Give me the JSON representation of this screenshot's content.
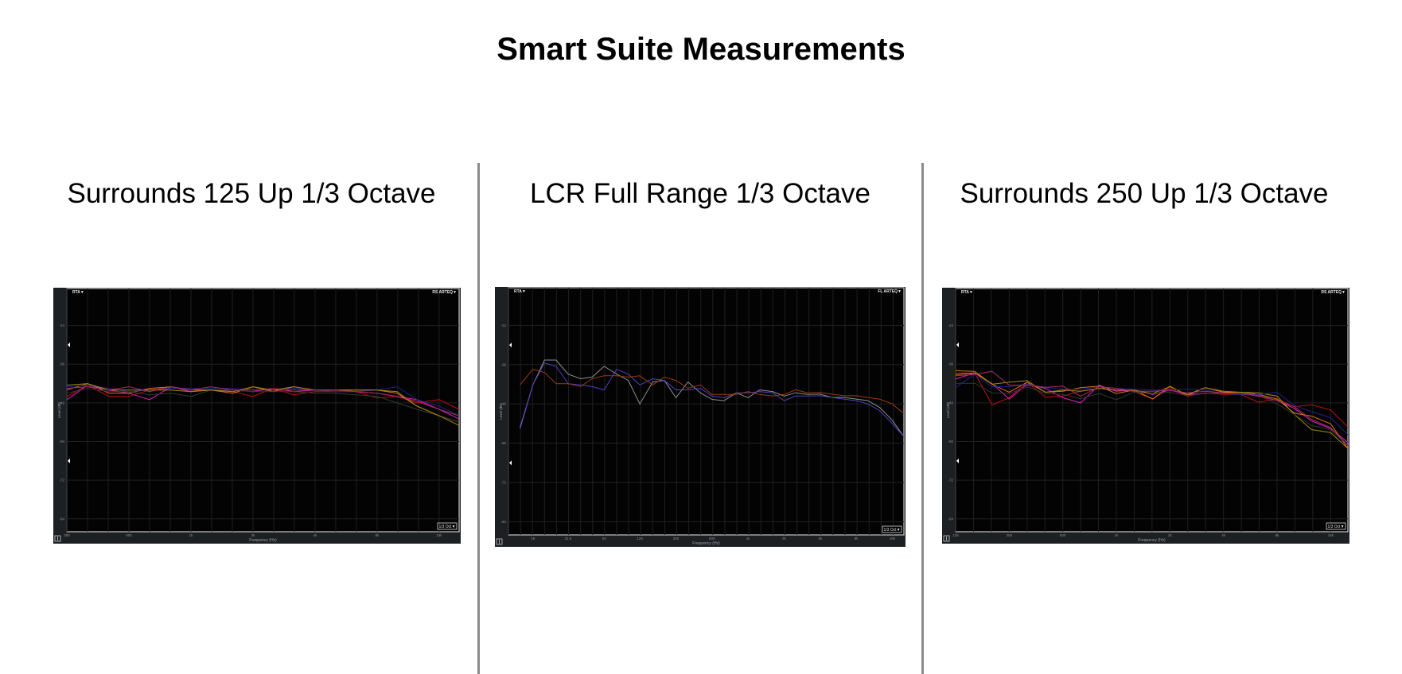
{
  "page": {
    "title": "Smart Suite Measurements"
  },
  "chart_data": [
    {
      "type": "line",
      "title": "Surrounds 125 Up 1/3 Octave",
      "xlabel": "Frequency (Hz)",
      "ylabel": "Level (dB)",
      "xscale": "log",
      "xlim": [
        250,
        20000
      ],
      "ylim": [
        -88,
        -12.5
      ],
      "yticks": [
        -24,
        -36,
        -48,
        -60,
        -72,
        -84
      ],
      "xticks": [
        {
          "v": 250,
          "label": "250"
        },
        {
          "v": 500,
          "label": "500"
        },
        {
          "v": 1000,
          "label": "1k"
        },
        {
          "v": 2000,
          "label": "2k"
        },
        {
          "v": 4000,
          "label": "4k"
        },
        {
          "v": 8000,
          "label": "8k"
        },
        {
          "v": 16000,
          "label": "16k"
        }
      ],
      "grid": true,
      "top_left_label": "RTA▼",
      "top_right_label": "RS ARTEQ▼",
      "resolution_label": "1/3 Oct▼",
      "x": [
        250,
        315,
        400,
        500,
        630,
        800,
        1000,
        1250,
        1600,
        2000,
        2500,
        3150,
        4000,
        5000,
        6300,
        8000,
        10000,
        12500,
        16000,
        20000
      ],
      "series": [
        {
          "name": "trace-1",
          "color": "#e020c0",
          "values": [
            -47,
            -42.5,
            -44,
            -45,
            -47,
            -43,
            -44.5,
            -44,
            -44,
            -44.5,
            -43.5,
            -44.5,
            -44,
            -44,
            -44.5,
            -45,
            -46,
            -47,
            -50,
            -53
          ]
        },
        {
          "name": "trace-2",
          "color": "#c01010",
          "values": [
            -46,
            -42.5,
            -46,
            -46,
            -44,
            -43,
            -44,
            -44,
            -44.5,
            -46,
            -43.5,
            -45.5,
            -44.5,
            -44.5,
            -44.5,
            -46.5,
            -46,
            -48,
            -47,
            -50
          ]
        },
        {
          "name": "trace-3",
          "color": "#e07020",
          "values": [
            -44,
            -42,
            -45,
            -45,
            -43.5,
            -43,
            -44,
            -44,
            -45,
            -43,
            -44.5,
            -43,
            -44,
            -44,
            -44,
            -44,
            -45,
            -49,
            -52,
            -54
          ]
        },
        {
          "name": "trace-4",
          "color": "#2c3a32",
          "values": [
            -45,
            -43.5,
            -44.5,
            -44.5,
            -45.5,
            -45,
            -46,
            -44,
            -44,
            -44.5,
            -44.5,
            -44.5,
            -45,
            -45,
            -45.5,
            -46,
            -48,
            -50,
            -52,
            -54
          ]
        },
        {
          "name": "trace-5",
          "color": "#22228a",
          "values": [
            -43,
            -42.5,
            -43.5,
            -44.5,
            -44,
            -43.5,
            -43.5,
            -43.5,
            -43.5,
            -44,
            -44,
            -43.5,
            -44,
            -44.5,
            -44.5,
            -44,
            -43,
            -47,
            -49,
            -52
          ]
        },
        {
          "name": "trace-6",
          "color": "#a08a10",
          "values": [
            -42.5,
            -42,
            -44,
            -44,
            -44,
            -44,
            -44.5,
            -44,
            -44.5,
            -43,
            -44,
            -43,
            -44,
            -44,
            -44,
            -44,
            -44.5,
            -49,
            -52,
            -55
          ]
        },
        {
          "name": "trace-7",
          "color": "#a03060",
          "values": [
            -43.5,
            -43,
            -44,
            -43,
            -44.5,
            -43,
            -44,
            -43,
            -44,
            -44,
            -44,
            -44,
            -44,
            -44,
            -44.5,
            -45,
            -46,
            -47.5,
            -50,
            -52
          ]
        }
      ]
    },
    {
      "type": "line",
      "title": "LCR Full Range 1/3 Octave",
      "xlabel": "Frequency (Hz)",
      "ylabel": "Level (dB)",
      "xscale": "log",
      "xlim": [
        10,
        20000
      ],
      "ylim": [
        -88,
        -12.5
      ],
      "yticks": [
        -24,
        -36,
        -48,
        -60,
        -72,
        -84
      ],
      "xticks": [
        {
          "v": 16,
          "label": "16"
        },
        {
          "v": 31.5,
          "label": "31.5"
        },
        {
          "v": 63,
          "label": "63"
        },
        {
          "v": 125,
          "label": "125"
        },
        {
          "v": 250,
          "label": "250"
        },
        {
          "v": 500,
          "label": "500"
        },
        {
          "v": 1000,
          "label": "1k"
        },
        {
          "v": 2000,
          "label": "2k"
        },
        {
          "v": 4000,
          "label": "4k"
        },
        {
          "v": 8000,
          "label": "8k"
        },
        {
          "v": 16000,
          "label": "16k"
        }
      ],
      "grid": true,
      "top_left_label": "RTA▼",
      "top_right_label": "FL ARTEQ▼",
      "resolution_label": "1/3 Oct▼",
      "x": [
        12.5,
        16,
        20,
        25,
        31.5,
        40,
        50,
        63,
        80,
        100,
        125,
        160,
        200,
        250,
        315,
        400,
        500,
        630,
        800,
        1000,
        1250,
        1600,
        2000,
        2500,
        3150,
        4000,
        5000,
        6300,
        8000,
        10000,
        12500,
        16000,
        20000
      ],
      "series": [
        {
          "name": "trace-1",
          "color": "#8a9090",
          "values": [
            -55.2,
            -42.2,
            -34.6,
            -34.6,
            -38.9,
            -40.3,
            -39.8,
            -36.5,
            -38.9,
            -40.8,
            -48,
            -41.3,
            -40.8,
            -46.1,
            -41.3,
            -44.6,
            -46.6,
            -47,
            -44.6,
            -46.1,
            -43.7,
            -44.2,
            -45.6,
            -44.6,
            -45.1,
            -45,
            -46,
            -46,
            -46.5,
            -47,
            -49,
            -53,
            -58
          ]
        },
        {
          "name": "trace-2",
          "color": "#5040c0",
          "values": [
            -55.7,
            -42.2,
            -35.5,
            -36.5,
            -41.8,
            -42.2,
            -42.7,
            -43.7,
            -37.4,
            -38.9,
            -42.2,
            -40.3,
            -40.8,
            -43.7,
            -43.7,
            -43.2,
            -45.6,
            -46.1,
            -44.6,
            -44.6,
            -44.2,
            -44.6,
            -47,
            -45.6,
            -45.6,
            -45.5,
            -46,
            -46.5,
            -47,
            -48,
            -50,
            -54,
            -58
          ]
        },
        {
          "name": "trace-3",
          "color": "#9a3a10",
          "values": [
            -42.2,
            -37.4,
            -38.4,
            -41.8,
            -41.8,
            -42.7,
            -40.3,
            -39.4,
            -39.4,
            -39.8,
            -39.4,
            -42.2,
            -39.8,
            -40.8,
            -43.2,
            -42.2,
            -45.1,
            -45.1,
            -45.1,
            -44.2,
            -45.1,
            -45.6,
            -45.1,
            -43.7,
            -44.6,
            -44.5,
            -45,
            -45.5,
            -45.5,
            -46,
            -46.5,
            -48,
            -51
          ]
        }
      ]
    },
    {
      "type": "line",
      "title": "Surrounds 250 Up 1/3 Octave",
      "xlabel": "Frequency (Hz)",
      "ylabel": "Level (dB)",
      "xscale": "log",
      "xlim": [
        125,
        20000
      ],
      "ylim": [
        -88,
        -12.5
      ],
      "yticks": [
        -24,
        -36,
        -48,
        -60,
        -72,
        -84
      ],
      "xticks": [
        {
          "v": 125,
          "label": "125"
        },
        {
          "v": 250,
          "label": "250"
        },
        {
          "v": 500,
          "label": "500"
        },
        {
          "v": 1000,
          "label": "1k"
        },
        {
          "v": 2000,
          "label": "2k"
        },
        {
          "v": 4000,
          "label": "4k"
        },
        {
          "v": 8000,
          "label": "8k"
        },
        {
          "v": 16000,
          "label": "16k"
        }
      ],
      "grid": true,
      "top_left_label": "RTA▼",
      "top_right_label": "RS ARTEQ▼",
      "resolution_label": "1/3 Oct▼",
      "x": [
        125,
        160,
        200,
        250,
        315,
        400,
        500,
        630,
        800,
        1000,
        1250,
        1600,
        2000,
        2500,
        3150,
        4000,
        5000,
        6300,
        8000,
        10000,
        12500,
        16000,
        20000
      ],
      "series": [
        {
          "name": "trace-1",
          "color": "#c01010",
          "values": [
            -38.7,
            -38.7,
            -48.6,
            -46.4,
            -41.6,
            -46.2,
            -45.9,
            -44.4,
            -43.5,
            -44,
            -44.4,
            -46.8,
            -43.5,
            -45.9,
            -44.9,
            -45.4,
            -45.4,
            -47.8,
            -46.8,
            -49.2,
            -48.6,
            -50.2,
            -55.5
          ]
        },
        {
          "name": "trace-2",
          "color": "#e020c0",
          "values": [
            -40.6,
            -38.7,
            -42,
            -46.8,
            -42.2,
            -43.5,
            -46.4,
            -48,
            -42.5,
            -44.4,
            -44,
            -45.4,
            -44,
            -45.4,
            -45.1,
            -44.9,
            -45.1,
            -45.9,
            -47.3,
            -49.7,
            -53.6,
            -56,
            -60.3
          ]
        },
        {
          "name": "trace-3",
          "color": "#e07020",
          "values": [
            -39.2,
            -38.7,
            -42.2,
            -44.7,
            -41.6,
            -44.7,
            -44.4,
            -43.3,
            -42.8,
            -45.1,
            -44,
            -46.8,
            -42.8,
            -45.7,
            -43.3,
            -44.7,
            -44.7,
            -45.4,
            -46.8,
            -51.2,
            -52.1,
            -54.5,
            -62.2
          ]
        },
        {
          "name": "trace-4",
          "color": "#a08a10",
          "values": [
            -38,
            -38.2,
            -42.2,
            -41.6,
            -41.1,
            -44.7,
            -44,
            -44.4,
            -43.5,
            -44,
            -44,
            -45.1,
            -43,
            -45.4,
            -43.3,
            -44.4,
            -44.7,
            -44.9,
            -45.9,
            -51.6,
            -56.3,
            -57.2,
            -62.2
          ]
        },
        {
          "name": "trace-5",
          "color": "#2c3a32",
          "values": [
            -41.9,
            -41.9,
            -44.9,
            -45.1,
            -43,
            -45.1,
            -45.4,
            -46.7,
            -45.1,
            -47,
            -44.7,
            -45.1,
            -44.7,
            -45.7,
            -45.1,
            -45.1,
            -45.4,
            -45.7,
            -48.3,
            -51.6,
            -55,
            -56.4,
            -61.2
          ]
        },
        {
          "name": "trace-6",
          "color": "#22228a",
          "values": [
            -43.2,
            -39.2,
            -43,
            -43,
            -42.2,
            -43.2,
            -43.8,
            -43.8,
            -43,
            -43.5,
            -43.8,
            -44,
            -44,
            -43.8,
            -44,
            -45.1,
            -45.4,
            -45.4,
            -44.7,
            -48.8,
            -50.7,
            -52.6,
            -57.9
          ]
        },
        {
          "name": "trace-7",
          "color": "#a03060",
          "values": [
            -39.6,
            -39.2,
            -38.2,
            -42.5,
            -42.5,
            -43.2,
            -42.8,
            -45.9,
            -43,
            -43.5,
            -44.4,
            -44.4,
            -44.1,
            -44.9,
            -44.4,
            -44.9,
            -45.1,
            -45.7,
            -47.3,
            -49.2,
            -53.1,
            -55.7,
            -61.2
          ]
        }
      ]
    }
  ]
}
